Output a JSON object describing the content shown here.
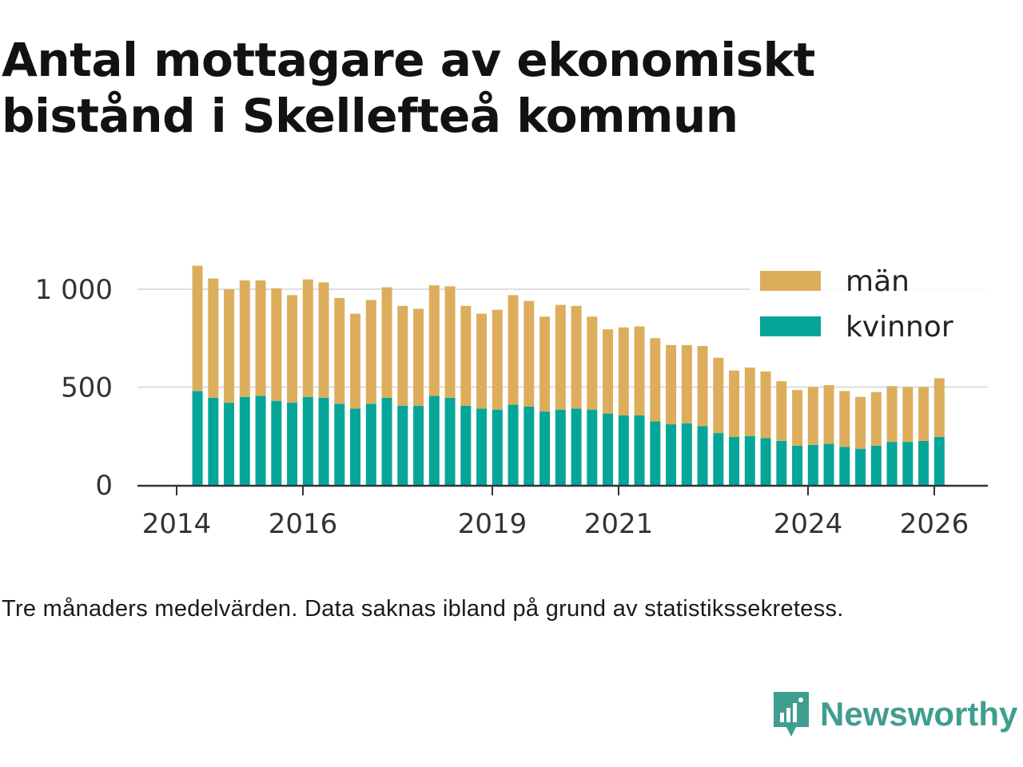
{
  "colors": {
    "men": "#dcae5c",
    "women": "#05a69a",
    "brand": "#3f9e8f",
    "grid": "#dedede",
    "axis": "#333333"
  },
  "caption": "Tre månaders medelvärden. Data saknas ibland på grund av statistikssekretess.",
  "brand": {
    "name": "Newsworthy",
    "icon": "newsworthy-logo-icon"
  },
  "chart_data": {
    "type": "bar",
    "stacked": true,
    "title": "Antal mottagare av ekonomiskt bistånd i Skellefteå kommun",
    "xlabel": "",
    "ylabel": "",
    "ylim": [
      0,
      1150
    ],
    "yticks": [
      0,
      500,
      1000
    ],
    "ytick_labels": [
      "0",
      "500",
      "1 000"
    ],
    "xlim": [
      2014.0,
      2026.55
    ],
    "xticks": [
      2014,
      2016,
      2019,
      2021,
      2024,
      2026
    ],
    "xtick_labels": [
      "2014",
      "2016",
      "2019",
      "2021",
      "2024",
      "2026"
    ],
    "legend": {
      "position": "top-right"
    },
    "x": [
      2014.33,
      2014.58,
      2014.83,
      2015.08,
      2015.33,
      2015.58,
      2015.83,
      2016.08,
      2016.33,
      2016.58,
      2016.83,
      2017.08,
      2017.33,
      2017.58,
      2017.83,
      2018.08,
      2018.33,
      2018.58,
      2018.83,
      2019.08,
      2019.33,
      2019.58,
      2019.83,
      2020.08,
      2020.33,
      2020.58,
      2020.83,
      2021.08,
      2021.33,
      2021.58,
      2021.83,
      2022.08,
      2022.33,
      2022.58,
      2022.83,
      2023.08,
      2023.33,
      2023.58,
      2023.83,
      2024.08,
      2024.33,
      2024.58,
      2024.83,
      2025.08,
      2025.33,
      2025.58,
      2025.83,
      2026.08
    ],
    "series": [
      {
        "name": "kvinnor",
        "color_key": "women",
        "values": [
          480,
          445,
          420,
          450,
          455,
          430,
          420,
          450,
          445,
          415,
          390,
          415,
          445,
          405,
          405,
          455,
          445,
          405,
          390,
          385,
          410,
          400,
          375,
          385,
          390,
          385,
          365,
          355,
          355,
          325,
          310,
          315,
          300,
          265,
          245,
          250,
          240,
          225,
          200,
          205,
          210,
          195,
          185,
          200,
          220,
          220,
          225,
          245
        ]
      },
      {
        "name": "män",
        "color_key": "men",
        "values": [
          640,
          610,
          580,
          595,
          590,
          575,
          550,
          600,
          590,
          540,
          485,
          530,
          565,
          510,
          495,
          565,
          570,
          510,
          485,
          510,
          560,
          540,
          485,
          535,
          525,
          475,
          430,
          450,
          455,
          425,
          405,
          400,
          410,
          385,
          340,
          350,
          340,
          305,
          285,
          295,
          300,
          285,
          265,
          275,
          285,
          280,
          275,
          300
        ]
      }
    ]
  }
}
